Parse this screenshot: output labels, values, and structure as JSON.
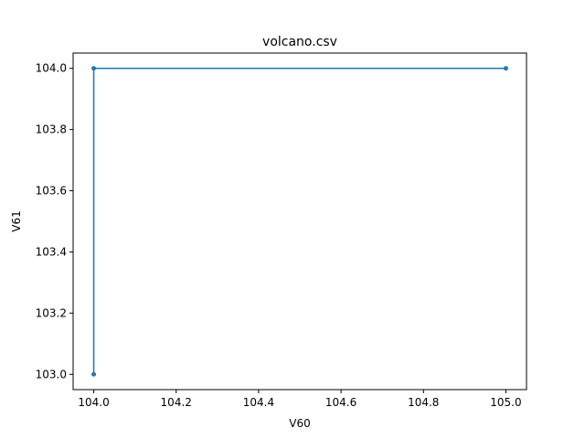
{
  "chart_data": {
    "type": "line",
    "title": "volcano.csv",
    "xlabel": "V60",
    "ylabel": "V61",
    "xlim": [
      103.95,
      105.05
    ],
    "ylim": [
      102.95,
      104.05
    ],
    "x_ticks": [
      "104.0",
      "104.2",
      "104.4",
      "104.6",
      "104.8",
      "105.0"
    ],
    "y_ticks": [
      "103.0",
      "103.2",
      "103.4",
      "103.6",
      "103.8",
      "104.0"
    ],
    "grid": false,
    "series": [
      {
        "color": "#1f77b4",
        "marker": "circle",
        "points": [
          {
            "x": 104.0,
            "y": 103.0
          },
          {
            "x": 104.0,
            "y": 104.0
          },
          {
            "x": 105.0,
            "y": 104.0
          }
        ]
      }
    ]
  }
}
